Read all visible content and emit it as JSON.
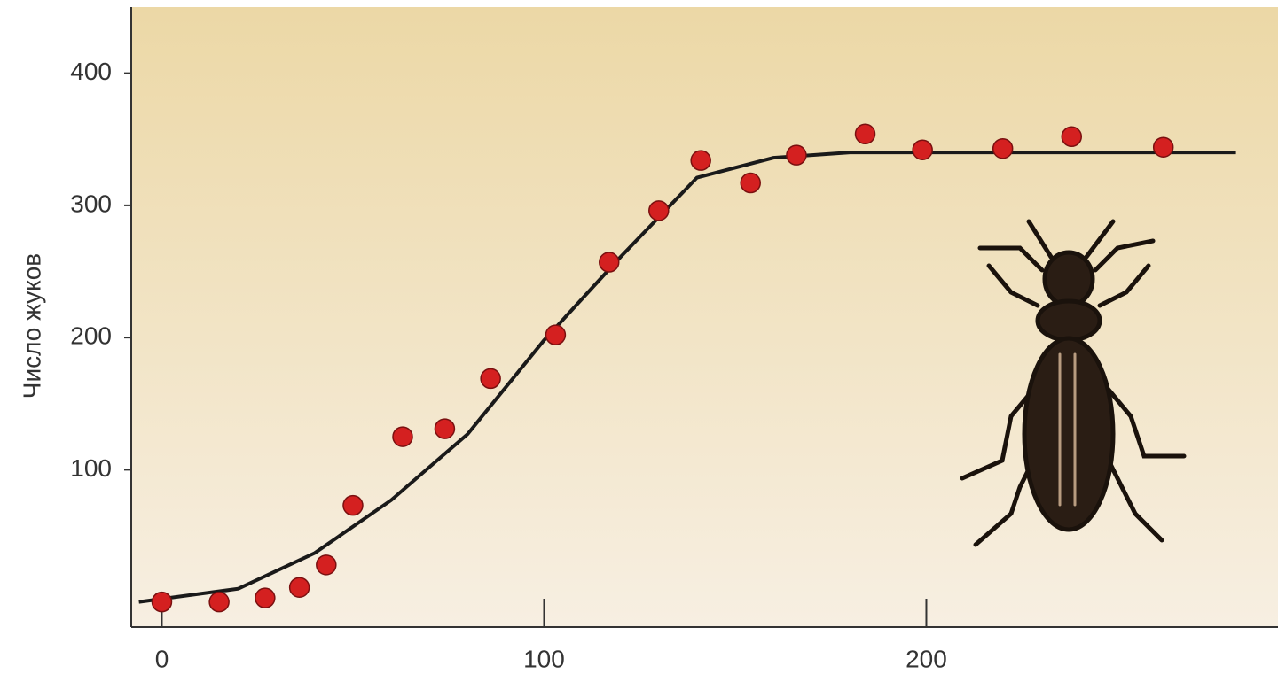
{
  "chart_data": {
    "type": "scatter",
    "y_label": "Число жуков",
    "x": [
      0,
      15,
      27,
      36,
      43,
      50,
      63,
      74,
      86,
      103,
      117,
      130,
      141,
      154,
      166,
      184,
      199,
      220,
      238,
      262
    ],
    "values": [
      0,
      0,
      3,
      11,
      28,
      73,
      125,
      131,
      169,
      202,
      257,
      296,
      334,
      317,
      338,
      354,
      342,
      343,
      352,
      344
    ],
    "color": "#d42020",
    "curve": {
      "x": [
        -6,
        20,
        40,
        60,
        80,
        100,
        120,
        140,
        160,
        180,
        281
      ],
      "values": [
        0,
        10,
        37,
        77,
        127,
        198,
        261,
        321,
        336,
        340,
        340
      ],
      "color": "#1a1a1a"
    },
    "xlim": [
      -8,
      292
    ],
    "ylim": [
      -19,
      450
    ],
    "xticks": [
      0,
      100,
      200
    ],
    "yticks": [
      100,
      200,
      300,
      400
    ]
  }
}
